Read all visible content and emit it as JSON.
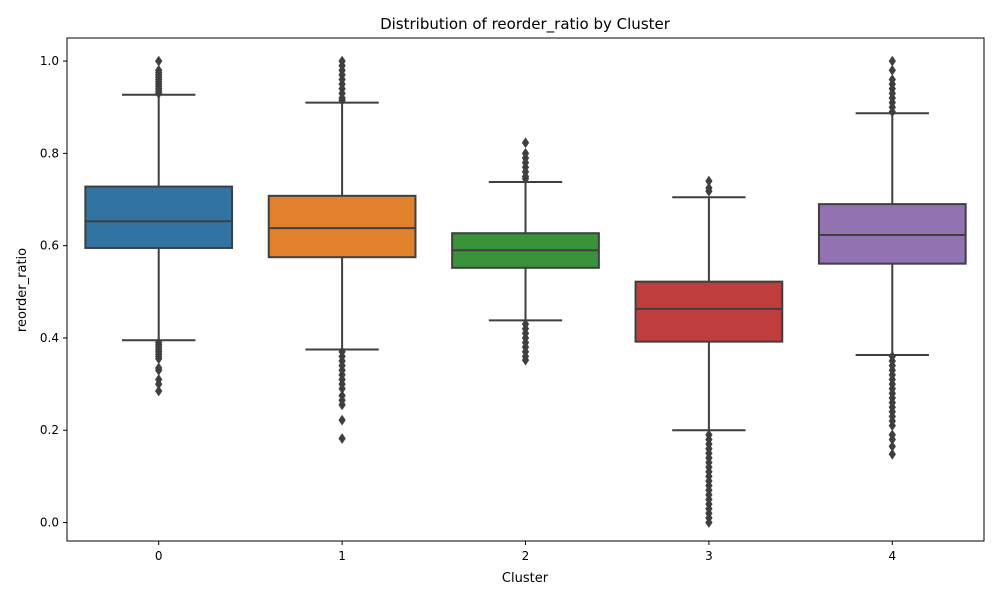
{
  "chart_data": {
    "type": "box",
    "title": "Distribution of reorder_ratio by Cluster",
    "xlabel": "Cluster",
    "ylabel": "reorder_ratio",
    "ylim": [
      -0.04,
      1.05
    ],
    "yticks": [
      "0.0",
      "0.2",
      "0.4",
      "0.6",
      "0.8",
      "1.0"
    ],
    "grid": false,
    "legend": "none",
    "categories": [
      "0",
      "1",
      "2",
      "3",
      "4"
    ],
    "boxes": [
      {
        "category": "0",
        "color": "#3274a1",
        "whisker_low": 0.395,
        "q1": 0.595,
        "median": 0.653,
        "q3": 0.728,
        "whisker_high": 0.927,
        "outliers_low": [
          0.285,
          0.3,
          0.31,
          0.33,
          0.335,
          0.355,
          0.36,
          0.365,
          0.37,
          0.375,
          0.38,
          0.385,
          0.39
        ],
        "outliers_high": [
          0.93,
          0.935,
          0.94,
          0.945,
          0.95,
          0.955,
          0.96,
          0.965,
          0.97,
          0.975,
          0.98,
          1.0
        ]
      },
      {
        "category": "1",
        "color": "#e1812c",
        "whisker_low": 0.375,
        "q1": 0.575,
        "median": 0.638,
        "q3": 0.708,
        "whisker_high": 0.91,
        "outliers_low": [
          0.182,
          0.222,
          0.255,
          0.265,
          0.275,
          0.29,
          0.3,
          0.31,
          0.32,
          0.33,
          0.34,
          0.35,
          0.36,
          0.37
        ],
        "outliers_high": [
          0.915,
          0.92,
          0.93,
          0.94,
          0.95,
          0.96,
          0.97,
          0.98,
          0.99,
          1.0
        ]
      },
      {
        "category": "2",
        "color": "#3a923a",
        "whisker_low": 0.438,
        "q1": 0.552,
        "median": 0.59,
        "q3": 0.627,
        "whisker_high": 0.738,
        "outliers_low": [
          0.352,
          0.36,
          0.37,
          0.38,
          0.39,
          0.4,
          0.41,
          0.42,
          0.43
        ],
        "outliers_high": [
          0.745,
          0.75,
          0.76,
          0.77,
          0.78,
          0.79,
          0.8,
          0.823
        ]
      },
      {
        "category": "3",
        "color": "#c03d3e",
        "whisker_low": 0.2,
        "q1": 0.392,
        "median": 0.463,
        "q3": 0.522,
        "whisker_high": 0.705,
        "outliers_low": [
          0.0,
          0.01,
          0.02,
          0.03,
          0.04,
          0.05,
          0.06,
          0.07,
          0.08,
          0.09,
          0.1,
          0.11,
          0.12,
          0.13,
          0.14,
          0.15,
          0.16,
          0.17,
          0.18,
          0.19
        ],
        "outliers_high": [
          0.718,
          0.725,
          0.74
        ]
      },
      {
        "category": "4",
        "color": "#9372b2",
        "whisker_low": 0.363,
        "q1": 0.561,
        "median": 0.623,
        "q3": 0.69,
        "whisker_high": 0.887,
        "outliers_low": [
          0.148,
          0.165,
          0.18,
          0.19,
          0.21,
          0.22,
          0.23,
          0.24,
          0.25,
          0.26,
          0.27,
          0.28,
          0.29,
          0.3,
          0.31,
          0.32,
          0.33,
          0.34,
          0.35,
          0.36
        ],
        "outliers_high": [
          0.89,
          0.9,
          0.91,
          0.92,
          0.93,
          0.94,
          0.95,
          0.96,
          0.98,
          1.0
        ]
      }
    ]
  }
}
